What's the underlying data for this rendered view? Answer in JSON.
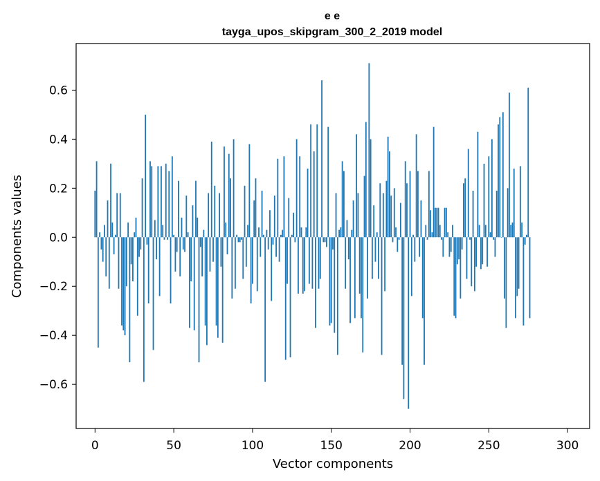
{
  "chart_data": {
    "type": "bar",
    "title": [
      "e e",
      "tayga_upos_skipgram_300_2_2019 model"
    ],
    "xlabel": "Vector components",
    "ylabel": "Components values",
    "xlim": [
      -12,
      314
    ],
    "ylim": [
      -0.78,
      0.79
    ],
    "xticks": [
      0,
      50,
      100,
      150,
      200,
      250,
      300
    ],
    "xtick_labels": [
      "0",
      "50",
      "100",
      "150",
      "200",
      "250",
      "300"
    ],
    "yticks": [
      -0.6,
      -0.4,
      -0.2,
      0.0,
      0.2,
      0.4,
      0.6
    ],
    "ytick_labels": [
      "−0.6",
      "−0.4",
      "−0.2",
      "0.0",
      "0.2",
      "0.4",
      "0.6"
    ],
    "bar_color": "#1f77b4",
    "grid": false,
    "series": [
      {
        "name": "components",
        "values": [
          0.19,
          0.31,
          -0.45,
          0.02,
          -0.05,
          -0.1,
          0.05,
          -0.16,
          0.15,
          -0.21,
          0.3,
          0.06,
          -0.07,
          0.01,
          0.18,
          -0.21,
          0.18,
          -0.36,
          -0.38,
          -0.4,
          -0.2,
          0.06,
          -0.51,
          -0.11,
          -0.18,
          0.02,
          0.08,
          -0.32,
          -0.08,
          -0.05,
          0.24,
          -0.59,
          0.5,
          -0.03,
          -0.27,
          0.31,
          0.29,
          -0.46,
          0.07,
          -0.09,
          0.29,
          -0.24,
          0.29,
          0.05,
          -0.01,
          0.3,
          -0.01,
          0.27,
          -0.27,
          0.33,
          0.01,
          -0.14,
          -0.06,
          0.23,
          -0.16,
          0.08,
          -0.05,
          -0.06,
          0.17,
          0.02,
          -0.37,
          -0.18,
          0.13,
          -0.38,
          0.23,
          0.08,
          -0.51,
          -0.04,
          -0.16,
          0.03,
          -0.36,
          -0.44,
          0.18,
          -0.14,
          0.39,
          -0.1,
          0.21,
          -0.36,
          -0.41,
          0.18,
          -0.12,
          -0.43,
          0.37,
          0.06,
          -0.07,
          0.34,
          0.24,
          -0.25,
          0.4,
          -0.21,
          0.01,
          -0.02,
          -0.02,
          -0.01,
          -0.17,
          0.21,
          -0.12,
          0.05,
          0.38,
          -0.27,
          -0.19,
          0.15,
          0.24,
          -0.22,
          0.04,
          -0.08,
          0.19,
          0.01,
          -0.59,
          0.03,
          -0.05,
          0.11,
          -0.26,
          -0.03,
          0.17,
          -0.08,
          0.32,
          -0.1,
          0.01,
          0.03,
          0.33,
          -0.5,
          -0.19,
          0.16,
          -0.49,
          0.01,
          0.1,
          -0.02,
          0.4,
          -0.23,
          0.33,
          0.04,
          -0.23,
          -0.22,
          0.04,
          0.28,
          -0.19,
          0.46,
          -0.21,
          0.35,
          -0.37,
          0.46,
          -0.21,
          -0.17,
          0.64,
          -0.02,
          -0.02,
          -0.04,
          0.45,
          -0.36,
          -0.35,
          -0.05,
          -0.39,
          0.18,
          -0.48,
          0.03,
          0.04,
          0.31,
          0.27,
          -0.21,
          0.07,
          -0.09,
          -0.35,
          0.03,
          0.15,
          -0.33,
          0.42,
          0.18,
          -0.23,
          -0.33,
          -0.47,
          0.25,
          0.47,
          -0.25,
          0.71,
          0.4,
          -0.17,
          0.13,
          -0.1,
          0.02,
          -0.17,
          0.22,
          -0.48,
          0.18,
          -0.22,
          0.23,
          0.41,
          0.35,
          0.17,
          -0.02,
          0.2,
          0.04,
          -0.06,
          -0.01,
          0.14,
          -0.52,
          -0.66,
          0.31,
          0.22,
          -0.7,
          0.27,
          -0.24,
          0.01,
          -0.1,
          0.42,
          0.27,
          -0.08,
          0.15,
          -0.33,
          -0.52,
          0.05,
          -0.01,
          0.27,
          0.11,
          0.02,
          0.45,
          0.12,
          0.12,
          0.12,
          0.05,
          -0.01,
          -0.08,
          0.12,
          0.12,
          0.02,
          -0.08,
          -0.06,
          0.05,
          -0.32,
          -0.33,
          -0.11,
          -0.09,
          -0.25,
          -0.05,
          0.22,
          0.24,
          -0.17,
          0.36,
          -0.01,
          -0.2,
          0.19,
          -0.22,
          -0.12,
          0.43,
          0.05,
          -0.13,
          -0.11,
          0.3,
          0.05,
          -0.12,
          0.33,
          0.02,
          0.4,
          -0.01,
          -0.08,
          0.19,
          0.46,
          0.49,
          0.0,
          0.51,
          -0.25,
          -0.37,
          0.2,
          0.59,
          0.05,
          0.06,
          0.28,
          -0.33,
          -0.24,
          -0.21,
          0.29,
          0.06,
          -0.36,
          -0.03,
          0.01,
          0.61,
          -0.33
        ]
      }
    ]
  }
}
